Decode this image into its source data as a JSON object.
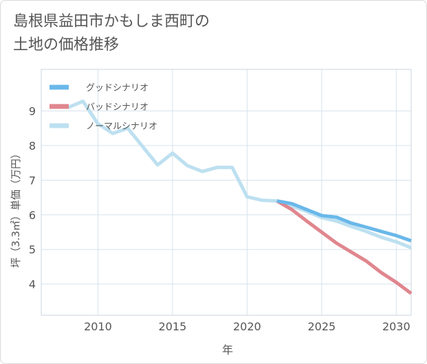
{
  "title": {
    "line1": "島根県益田市かもしま西町の",
    "line2": "土地の価格推移"
  },
  "chart_data": {
    "type": "line",
    "title": "島根県益田市かもしま西町の土地の価格推移",
    "xlabel": "年",
    "ylabel": "坪（3.3㎡）単価（万円）",
    "xlim": [
      2006.2,
      2031
    ],
    "ylim": [
      3.1,
      10.2
    ],
    "x_ticks": [
      2010,
      2015,
      2020,
      2025,
      2030
    ],
    "y_ticks": [
      4,
      5,
      6,
      7,
      8,
      9
    ],
    "grid": true,
    "legend_position": "top-left",
    "series": [
      {
        "name": "グッドシナリオ",
        "color": "#6ab8ea",
        "x": [
          2022,
          2023,
          2024,
          2025,
          2026,
          2027,
          2028,
          2029,
          2030,
          2031
        ],
        "values": [
          6.4,
          6.32,
          6.15,
          5.98,
          5.93,
          5.76,
          5.64,
          5.52,
          5.4,
          5.25
        ]
      },
      {
        "name": "バッドシナリオ",
        "color": "#e0868e",
        "x": [
          2022,
          2023,
          2024,
          2025,
          2026,
          2027,
          2028,
          2029,
          2030,
          2031
        ],
        "values": [
          6.4,
          6.15,
          5.82,
          5.5,
          5.18,
          4.92,
          4.66,
          4.33,
          4.05,
          3.73
        ]
      },
      {
        "name": "ノーマルシナリオ",
        "color": "#bde0f0",
        "x": [
          2008,
          2009,
          2010,
          2011,
          2012,
          2013,
          2014,
          2015,
          2016,
          2017,
          2018,
          2019,
          2020,
          2021,
          2022,
          2023,
          2024,
          2025,
          2026,
          2027,
          2028,
          2029,
          2030,
          2031
        ],
        "values": [
          9.1,
          9.28,
          8.63,
          8.35,
          8.5,
          7.97,
          7.44,
          7.78,
          7.42,
          7.25,
          7.37,
          7.37,
          6.52,
          6.42,
          6.4,
          6.25,
          6.1,
          5.92,
          5.82,
          5.66,
          5.52,
          5.35,
          5.22,
          5.05
        ]
      }
    ]
  }
}
